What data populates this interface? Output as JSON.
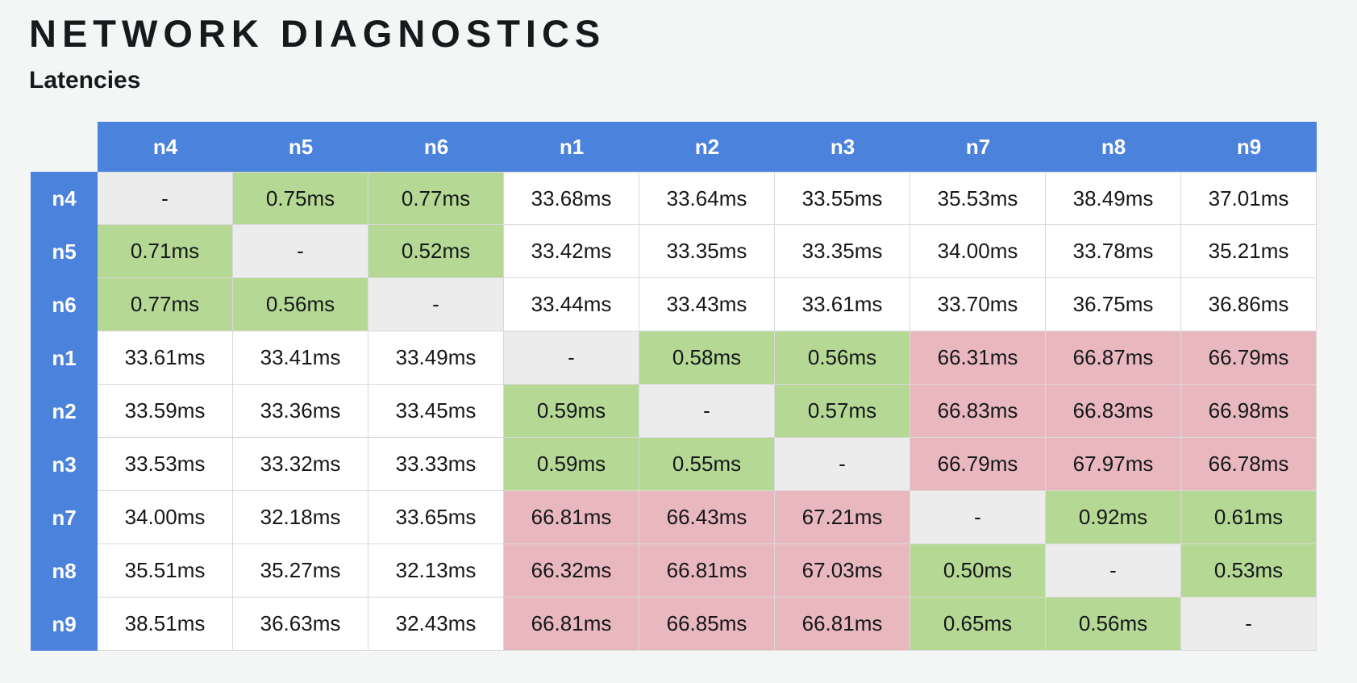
{
  "page": {
    "title": "NETWORK DIAGNOSTICS",
    "subtitle": "Latencies"
  },
  "table": {
    "columns": [
      "n4",
      "n5",
      "n6",
      "n1",
      "n2",
      "n3",
      "n7",
      "n8",
      "n9"
    ],
    "rows": [
      {
        "label": "n4",
        "values": [
          "-",
          "0.75ms",
          "0.77ms",
          "33.68ms",
          "33.64ms",
          "33.55ms",
          "35.53ms",
          "38.49ms",
          "37.01ms"
        ]
      },
      {
        "label": "n5",
        "values": [
          "0.71ms",
          "-",
          "0.52ms",
          "33.42ms",
          "33.35ms",
          "33.35ms",
          "34.00ms",
          "33.78ms",
          "35.21ms"
        ]
      },
      {
        "label": "n6",
        "values": [
          "0.77ms",
          "0.56ms",
          "-",
          "33.44ms",
          "33.43ms",
          "33.61ms",
          "33.70ms",
          "36.75ms",
          "36.86ms"
        ]
      },
      {
        "label": "n1",
        "values": [
          "33.61ms",
          "33.41ms",
          "33.49ms",
          "-",
          "0.58ms",
          "0.56ms",
          "66.31ms",
          "66.87ms",
          "66.79ms"
        ]
      },
      {
        "label": "n2",
        "values": [
          "33.59ms",
          "33.36ms",
          "33.45ms",
          "0.59ms",
          "-",
          "0.57ms",
          "66.83ms",
          "66.83ms",
          "66.98ms"
        ]
      },
      {
        "label": "n3",
        "values": [
          "33.53ms",
          "33.32ms",
          "33.33ms",
          "0.59ms",
          "0.55ms",
          "-",
          "66.79ms",
          "67.97ms",
          "66.78ms"
        ]
      },
      {
        "label": "n7",
        "values": [
          "34.00ms",
          "32.18ms",
          "33.65ms",
          "66.81ms",
          "66.43ms",
          "67.21ms",
          "-",
          "0.92ms",
          "0.61ms"
        ]
      },
      {
        "label": "n8",
        "values": [
          "35.51ms",
          "35.27ms",
          "32.13ms",
          "66.32ms",
          "66.81ms",
          "67.03ms",
          "0.50ms",
          "-",
          "0.53ms"
        ]
      },
      {
        "label": "n9",
        "values": [
          "38.51ms",
          "36.63ms",
          "32.43ms",
          "66.81ms",
          "66.85ms",
          "66.81ms",
          "0.65ms",
          "0.56ms",
          "-"
        ]
      }
    ],
    "cell_colors": [
      [
        "self",
        "fast",
        "fast",
        "normal",
        "normal",
        "normal",
        "normal",
        "normal",
        "normal"
      ],
      [
        "fast",
        "self",
        "fast",
        "normal",
        "normal",
        "normal",
        "normal",
        "normal",
        "normal"
      ],
      [
        "fast",
        "fast",
        "self",
        "normal",
        "normal",
        "normal",
        "normal",
        "normal",
        "normal"
      ],
      [
        "normal",
        "normal",
        "normal",
        "self",
        "fast",
        "fast",
        "slow",
        "slow",
        "slow"
      ],
      [
        "normal",
        "normal",
        "normal",
        "fast",
        "self",
        "fast",
        "slow",
        "slow",
        "slow"
      ],
      [
        "normal",
        "normal",
        "normal",
        "fast",
        "fast",
        "self",
        "slow",
        "slow",
        "slow"
      ],
      [
        "normal",
        "normal",
        "normal",
        "slow",
        "slow",
        "slow",
        "self",
        "fast",
        "fast"
      ],
      [
        "normal",
        "normal",
        "normal",
        "slow",
        "slow",
        "slow",
        "fast",
        "self",
        "fast"
      ],
      [
        "normal",
        "normal",
        "normal",
        "slow",
        "slow",
        "slow",
        "fast",
        "fast",
        "self"
      ]
    ]
  },
  "colors": {
    "header": "#4a82dc",
    "header_text": "#ffffff",
    "cells": {
      "normal": "#ffffff",
      "fast": "#b5d994",
      "slow": "#e9b8be",
      "self": "#ececec"
    },
    "cell_text": "#15171a",
    "title_text": "#17191c",
    "border": "#d9d9d9",
    "page_bg": "#f4f5f5"
  }
}
